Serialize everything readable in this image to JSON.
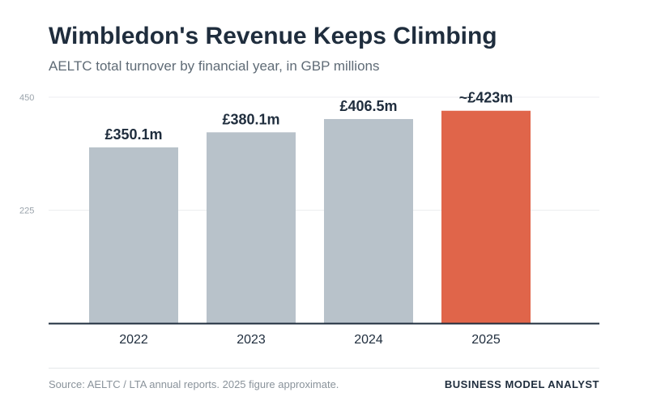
{
  "header": {
    "title": "Wimbledon's Revenue Keeps Climbing",
    "subtitle": "AELTC total turnover by financial year, in GBP millions"
  },
  "footer": {
    "source": "Source: AELTC / LTA annual reports. 2025 figure approximate.",
    "brand": "BUSINESS MODEL ANALYST"
  },
  "colors": {
    "bar_default": "#b8c2ca",
    "bar_highlight": "#e0654a",
    "label_text": "#1f2d3d",
    "axis_line": "#1f2d3d",
    "grid": "#eceef0",
    "tick_text": "#9aa3ab"
  },
  "chart_data": {
    "type": "bar",
    "categories": [
      "2022",
      "2023",
      "2024",
      "2025"
    ],
    "values": [
      350.1,
      380.1,
      406.5,
      423
    ],
    "data_labels": [
      "£350.1m",
      "£380.1m",
      "£406.5m",
      "~£423m"
    ],
    "highlight_category": "2025",
    "yticks": [
      "225",
      "450"
    ],
    "ylim": [
      0,
      450
    ],
    "grid": true,
    "title": "Wimbledon's Revenue Keeps Climbing",
    "xlabel": "",
    "ylabel": ""
  }
}
